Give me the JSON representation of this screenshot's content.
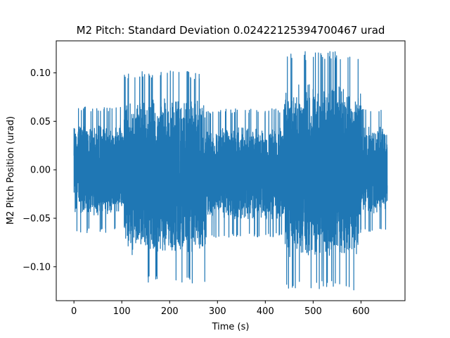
{
  "chart_data": {
    "type": "line",
    "title": "M2 Pitch: Standard Deviation 0.02422125394700467 urad",
    "xlabel": "Time (s)",
    "ylabel": "M2 Pitch Position (urad)",
    "xlim": [
      -37,
      692
    ],
    "ylim": [
      -0.135,
      0.133
    ],
    "x_ticks": [
      0,
      100,
      200,
      300,
      400,
      500,
      600
    ],
    "x_tick_labels": [
      "0",
      "100",
      "200",
      "300",
      "400",
      "500",
      "600"
    ],
    "y_ticks": [
      -0.1,
      -0.05,
      0.0,
      0.05,
      0.1
    ],
    "y_tick_labels": [
      "−0.10",
      "−0.05",
      "0.00",
      "0.05",
      "0.10"
    ],
    "grid": false,
    "series": [
      {
        "color": "#1f77b4",
        "x_range": [
          0,
          655
        ],
        "standard_deviation": 0.02422125394700467,
        "mean": 0.0,
        "segments": [
          {
            "x_start": 0,
            "x_end": 105,
            "envelope_max": 0.065,
            "envelope_min": -0.065
          },
          {
            "x_start": 105,
            "x_end": 277,
            "envelope_max": 0.102,
            "envelope_min": -0.117
          },
          {
            "x_start": 277,
            "x_end": 440,
            "envelope_max": 0.063,
            "envelope_min": -0.07
          },
          {
            "x_start": 440,
            "x_end": 600,
            "envelope_max": 0.122,
            "envelope_min": -0.124
          },
          {
            "x_start": 600,
            "x_end": 655,
            "envelope_max": 0.063,
            "envelope_min": -0.065
          }
        ]
      }
    ]
  }
}
